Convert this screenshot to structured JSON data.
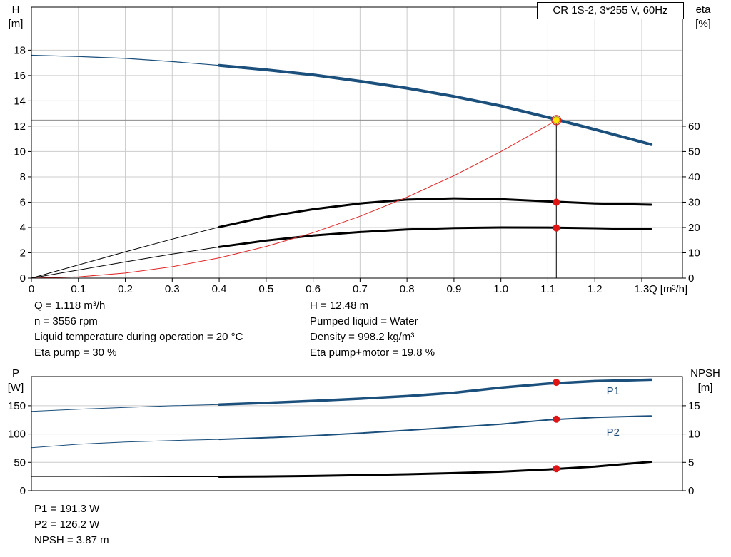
{
  "colors": {
    "curve_blue": "#1b4f7c",
    "curve_black": "#000000",
    "curve_red": "#e02424",
    "dot_red": "#e01414",
    "duty_fill": "#ffe600",
    "duty_ring": "#9a8a00",
    "grid": "#cccccc",
    "ref_line": "#8c8c8c",
    "frame": "#000000",
    "text": "#000000"
  },
  "annotations": {
    "left": [
      "Q = 1.118 m³/h",
      "n = 3556 rpm",
      "Liquid temperature during operation = 20 °C",
      "Eta pump = 30 %"
    ],
    "right": [
      "H = 12.48 m",
      "Pumped liquid = Water",
      "Density = 998.2 kg/m³",
      "Eta pump+motor = 19.8 %"
    ],
    "bottom": [
      "P1 = 191.3 W",
      "P2 = 126.2 W",
      "NPSH = 3.87 m"
    ]
  },
  "chart_data": [
    {
      "type": "line",
      "title": "CR 1S-2, 3*255 V, 60Hz",
      "xlabel": "Q [m³/h]",
      "ylabel_left": {
        "symbol": "H",
        "unit": "[m]"
      },
      "ylabel_right": {
        "symbol": "eta",
        "unit": "[%]"
      },
      "xlim": [
        0,
        1.3867
      ],
      "ylim_left": [
        0,
        21.4
      ],
      "ylim_right": [
        0,
        107
      ],
      "grid_x": true,
      "xticks": [
        0,
        0.1,
        0.2,
        0.3,
        0.4,
        0.5,
        0.6,
        0.7,
        0.8,
        0.9,
        1.0,
        1.1,
        1.2,
        1.3
      ],
      "xtick_labels": [
        "0",
        "0.1",
        "0.2",
        "0.3",
        "0.4",
        "0.5",
        "0.6",
        "0.7",
        "0.8",
        "0.9",
        "1.0",
        "1.1",
        "1.2",
        "1.3"
      ],
      "yticks_left": [
        0,
        2,
        4,
        6,
        8,
        10,
        12,
        14,
        16,
        18
      ],
      "yticks_right": [
        0,
        10,
        20,
        30,
        40,
        50,
        60
      ],
      "ref_lines": {
        "h": 12.48,
        "v": 1.118
      },
      "series": [
        {
          "name": "head-curve",
          "axis": "left",
          "color": "#1b4f7c",
          "split": 0.4,
          "width_thin": 1.2,
          "width": 4,
          "x": [
            0,
            0.1,
            0.2,
            0.3,
            0.4,
            0.5,
            0.6,
            0.7,
            0.8,
            0.9,
            1.0,
            1.1,
            1.2,
            1.32
          ],
          "y": [
            17.6,
            17.5,
            17.35,
            17.1,
            16.8,
            16.45,
            16.05,
            15.55,
            15.0,
            14.35,
            13.6,
            12.7,
            11.75,
            10.55
          ]
        },
        {
          "name": "eta-pump-curve",
          "axis": "right",
          "color": "#000000",
          "split": 0.4,
          "width_thin": 1,
          "width": 3,
          "x": [
            0,
            0.1,
            0.2,
            0.3,
            0.4,
            0.5,
            0.6,
            0.7,
            0.8,
            0.9,
            1.0,
            1.1,
            1.2,
            1.32
          ],
          "y": [
            0,
            5.2,
            10.4,
            15.4,
            20.2,
            24.2,
            27.2,
            29.5,
            31.0,
            31.5,
            31.2,
            30.3,
            29.5,
            29.0
          ]
        },
        {
          "name": "eta-pump-motor-curve",
          "axis": "right",
          "color": "#000000",
          "split": 0.4,
          "width_thin": 1,
          "width": 3,
          "x": [
            0,
            0.1,
            0.2,
            0.3,
            0.4,
            0.5,
            0.6,
            0.7,
            0.8,
            0.9,
            1.0,
            1.1,
            1.2,
            1.32
          ],
          "y": [
            0,
            3.2,
            6.4,
            9.5,
            12.3,
            14.8,
            16.8,
            18.2,
            19.2,
            19.8,
            20.0,
            19.95,
            19.7,
            19.3
          ]
        },
        {
          "name": "system-curve",
          "axis": "left",
          "color": "#e02424",
          "width": 1,
          "x": [
            0,
            0.1,
            0.2,
            0.3,
            0.4,
            0.5,
            0.6,
            0.7,
            0.8,
            0.9,
            1.0,
            1.1,
            1.118
          ],
          "y": [
            0,
            0.1,
            0.4,
            0.9,
            1.6,
            2.5,
            3.59,
            4.89,
            6.39,
            8.09,
            9.99,
            12.08,
            12.48
          ]
        }
      ],
      "labels": [],
      "markers": [
        {
          "name": "duty-point",
          "x": 1.118,
          "y": 12.48,
          "axis": "left",
          "style": "duty"
        },
        {
          "name": "eta-pump-point",
          "x": 1.118,
          "y": 30,
          "axis": "right",
          "style": "dot"
        },
        {
          "name": "eta-pump-motor-point",
          "x": 1.118,
          "y": 19.8,
          "axis": "right",
          "style": "dot"
        }
      ]
    },
    {
      "type": "line",
      "title": "",
      "xlabel": "",
      "ylabel_left": {
        "symbol": "P",
        "unit": "[W]"
      },
      "ylabel_right": {
        "symbol": "NPSH",
        "unit": "[m]"
      },
      "xlim": [
        0,
        1.3867
      ],
      "ylim_left": [
        0,
        201.5
      ],
      "ylim_right": [
        0,
        20.15
      ],
      "grid_x": false,
      "xticks": [],
      "xtick_labels": [],
      "yticks_left": [
        0,
        50,
        100,
        150
      ],
      "yticks_right": [
        0,
        5,
        10,
        15
      ],
      "series": [
        {
          "name": "p1-curve",
          "axis": "left",
          "color": "#1b4f7c",
          "split": 0.4,
          "width_thin": 1,
          "width": 3.5,
          "x": [
            0,
            0.1,
            0.2,
            0.3,
            0.4,
            0.5,
            0.6,
            0.7,
            0.8,
            0.9,
            1.0,
            1.1,
            1.2,
            1.32
          ],
          "y": [
            140,
            144,
            147,
            150,
            152,
            155,
            158.5,
            162.5,
            167,
            173,
            182,
            189,
            193.5,
            196
          ]
        },
        {
          "name": "p2-curve",
          "axis": "left",
          "color": "#1b4f7c",
          "split": 0.4,
          "width_thin": 1,
          "width": 2,
          "x": [
            0,
            0.1,
            0.2,
            0.3,
            0.4,
            0.5,
            0.6,
            0.7,
            0.8,
            0.9,
            1.0,
            1.1,
            1.2,
            1.32
          ],
          "y": [
            76,
            82,
            86,
            88.5,
            90.5,
            93.5,
            97,
            101.5,
            106.5,
            112,
            117.5,
            125,
            129.5,
            132
          ]
        },
        {
          "name": "npsh-curve",
          "axis": "right",
          "color": "#000000",
          "split": 0.4,
          "width_thin": 1,
          "width": 3,
          "x": [
            0,
            0.1,
            0.2,
            0.3,
            0.4,
            0.5,
            0.6,
            0.7,
            0.8,
            0.9,
            1.0,
            1.1,
            1.2,
            1.32
          ],
          "y": [
            2.5,
            2.5,
            2.48,
            2.45,
            2.45,
            2.5,
            2.6,
            2.75,
            2.9,
            3.1,
            3.35,
            3.75,
            4.25,
            5.1
          ]
        }
      ],
      "labels": [
        {
          "text": "P1",
          "x": 1.225,
          "y": 176,
          "axis": "left",
          "color": "#1b4f7c"
        },
        {
          "text": "P2",
          "x": 1.225,
          "y": 103,
          "axis": "left",
          "color": "#1b4f7c"
        }
      ],
      "markers": [
        {
          "name": "p1-point",
          "x": 1.118,
          "y": 191.3,
          "axis": "left",
          "style": "dot"
        },
        {
          "name": "p2-point",
          "x": 1.118,
          "y": 126.2,
          "axis": "left",
          "style": "dot"
        },
        {
          "name": "npsh-point",
          "x": 1.118,
          "y": 3.87,
          "axis": "right",
          "style": "dot"
        }
      ]
    }
  ]
}
